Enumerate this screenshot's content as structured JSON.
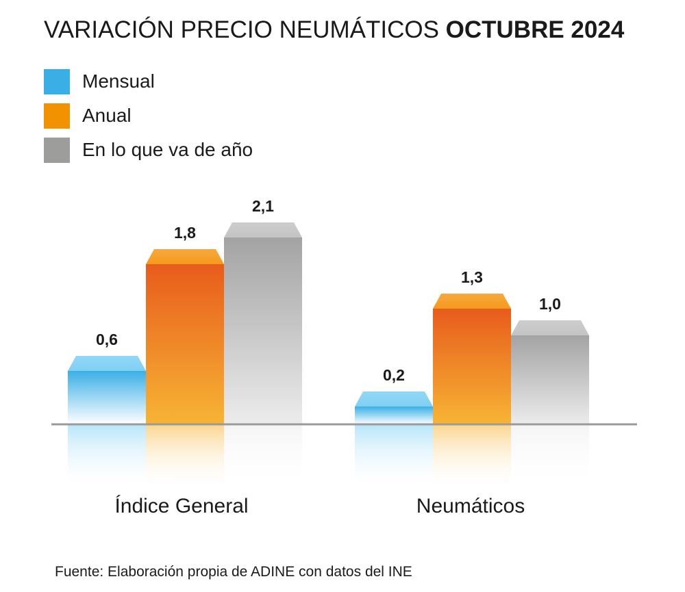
{
  "title": {
    "regular": "VARIACIÓN PRECIO NEUMÁTICOS",
    "bold": "OCTUBRE 2024"
  },
  "source": "Fuente: Elaboración propia de ADINE con datos del INE",
  "colors": {
    "Mensual": {
      "swatch": "#3aafe6",
      "top": "#3aafe6",
      "bottom": "#ffffff",
      "cap": "#7fd0f4"
    },
    "Anual": {
      "swatch": "#f39200",
      "top": "#e85c1c",
      "bottom": "#f7b435",
      "cap": "#f59a1c"
    },
    "En lo que va de año": {
      "swatch": "#9d9d9c",
      "top": "#a3a3a3",
      "bottom": "#ececec",
      "cap": "#c4c4c4"
    }
  },
  "chart_data": {
    "type": "bar",
    "title": "VARIACIÓN PRECIO NEUMÁTICOS OCTUBRE 2024",
    "categories": [
      "Índice General",
      "Neumáticos"
    ],
    "series": [
      {
        "name": "Mensual",
        "values": [
          0.6,
          0.2
        ],
        "labels": [
          "0,6",
          "0,2"
        ]
      },
      {
        "name": "Anual",
        "values": [
          1.8,
          1.3
        ],
        "labels": [
          "1,8",
          "1,3"
        ]
      },
      {
        "name": "En lo que va de año",
        "values": [
          2.1,
          1.0
        ],
        "labels": [
          "2,1",
          "1,0"
        ]
      }
    ],
    "xlabel": "",
    "ylabel": "",
    "ylim": [
      0,
      2.5
    ],
    "grid": false,
    "legend": "top-left"
  }
}
